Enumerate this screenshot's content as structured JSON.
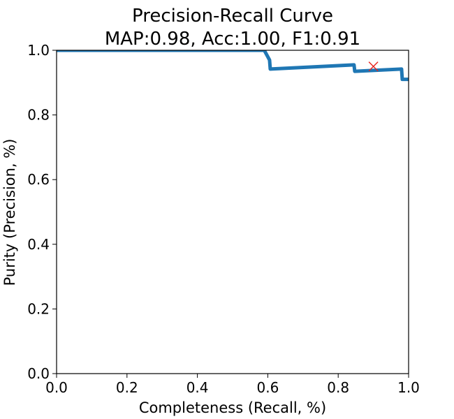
{
  "chart_data": {
    "type": "line",
    "title": [
      "Precision-Recall Curve",
      "MAP:0.98, Acc:1.00, F1:0.91"
    ],
    "xlabel": "Completeness (Recall, %)",
    "ylabel": "Purity (Precision, %)",
    "xlim": [
      0.0,
      1.0
    ],
    "ylim": [
      0.0,
      1.0
    ],
    "xticks": [
      0.0,
      0.2,
      0.4,
      0.6,
      0.8,
      1.0
    ],
    "xtick_labels": [
      "0.0",
      "0.2",
      "0.4",
      "0.6",
      "0.8",
      "1.0"
    ],
    "yticks": [
      0.0,
      0.2,
      0.4,
      0.6,
      0.8,
      1.0
    ],
    "ytick_labels": [
      "0.0",
      "0.2",
      "0.4",
      "0.6",
      "0.8",
      "1.0"
    ],
    "grid": false,
    "series": [
      {
        "color": "#1f77b4",
        "x": [
          0.0,
          0.59,
          0.605,
          0.607,
          0.845,
          0.847,
          0.98,
          0.982,
          1.0
        ],
        "y": [
          1.0,
          1.0,
          0.97,
          0.942,
          0.955,
          0.935,
          0.942,
          0.91,
          0.91
        ]
      }
    ],
    "marker": {
      "symbol": "x",
      "color": "#e8231e",
      "x": 0.9,
      "y": 0.95
    }
  }
}
